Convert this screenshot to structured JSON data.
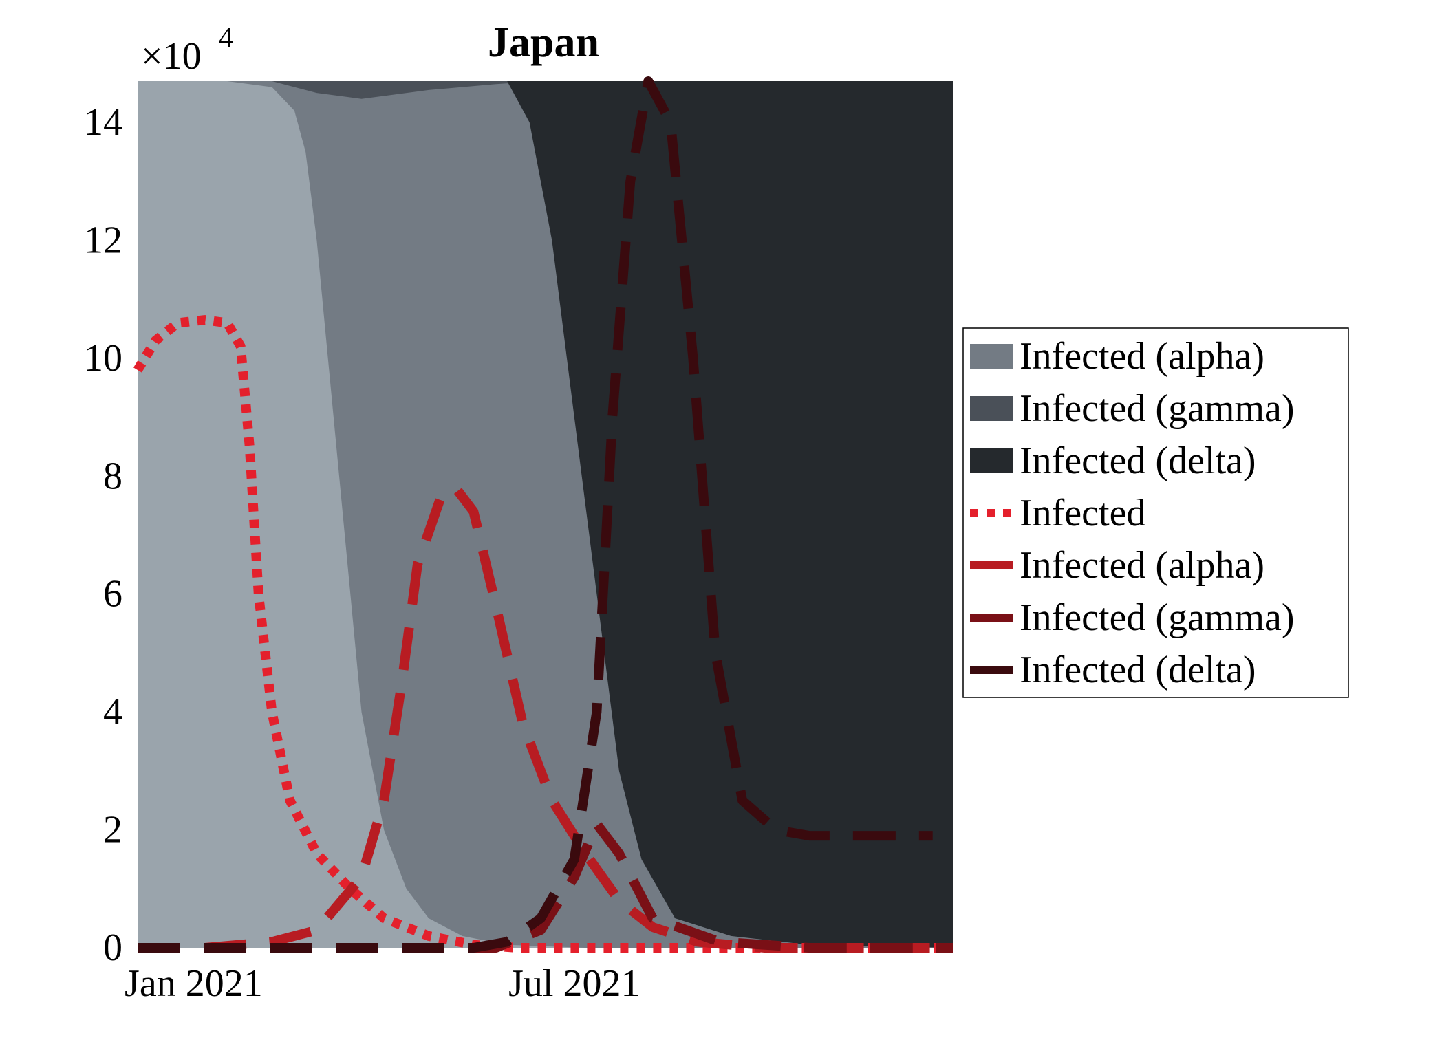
{
  "chart_data": {
    "type": "area",
    "title": "Japan",
    "y_exponent_label": "×10",
    "y_exponent_power": "4",
    "y_scale": 10000,
    "ylim": [
      0,
      14.7
    ],
    "xlim_days": [
      0,
      364
    ],
    "x_ticks": [
      {
        "day": 25,
        "label": "Jan 2021"
      },
      {
        "day": 195,
        "label": "Jul 2021"
      }
    ],
    "y_ticks": [
      {
        "value": 0,
        "label": "0"
      },
      {
        "value": 2,
        "label": "2"
      },
      {
        "value": 4,
        "label": "4"
      },
      {
        "value": 6,
        "label": "6"
      },
      {
        "value": 8,
        "label": "8"
      },
      {
        "value": 10,
        "label": "10"
      },
      {
        "value": 12,
        "label": "12"
      },
      {
        "value": 14,
        "label": "14"
      }
    ],
    "stacked_areas": [
      {
        "name": "Infected (alpha)",
        "color": "#9aa4ac",
        "upper": [
          [
            0,
            14.7
          ],
          [
            40,
            14.7
          ],
          [
            60,
            14.6
          ],
          [
            70,
            14.2
          ],
          [
            75,
            13.5
          ],
          [
            80,
            12.0
          ],
          [
            85,
            10.0
          ],
          [
            90,
            8.0
          ],
          [
            95,
            6.0
          ],
          [
            100,
            4.0
          ],
          [
            110,
            2.0
          ],
          [
            120,
            1.0
          ],
          [
            130,
            0.5
          ],
          [
            145,
            0.2
          ],
          [
            165,
            0.05
          ],
          [
            200,
            0.0
          ],
          [
            364,
            0.0
          ]
        ]
      },
      {
        "name": "Infected (gamma)",
        "color": "#737b84",
        "upper": [
          [
            0,
            14.7
          ],
          [
            364,
            14.7
          ]
        ]
      },
      {
        "name": "Infected (gamma)",
        "color": "#4a5058",
        "upper": [
          [
            0,
            14.7
          ],
          [
            364,
            14.7
          ]
        ]
      },
      {
        "name": "Infected (delta)",
        "color": "#25292d",
        "lower": [
          [
            0,
            14.7
          ],
          [
            165,
            14.7
          ],
          [
            175,
            14.0
          ],
          [
            185,
            12.0
          ],
          [
            195,
            9.0
          ],
          [
            205,
            6.0
          ],
          [
            215,
            3.0
          ],
          [
            225,
            1.5
          ],
          [
            240,
            0.5
          ],
          [
            265,
            0.2
          ],
          [
            300,
            0.05
          ],
          [
            364,
            0.0
          ]
        ]
      }
    ],
    "gamma_band": [
      [
        0,
        14.7
      ],
      [
        40,
        14.7
      ],
      [
        60,
        14.7
      ],
      [
        80,
        14.5
      ],
      [
        100,
        14.4
      ],
      [
        130,
        14.55
      ],
      [
        160,
        14.65
      ],
      [
        180,
        14.7
      ],
      [
        364,
        14.7
      ]
    ],
    "lines": [
      {
        "name": "Infected",
        "color": "#e4202c",
        "dash": "dotted",
        "points": [
          [
            0,
            9.8
          ],
          [
            8,
            10.3
          ],
          [
            18,
            10.6
          ],
          [
            30,
            10.65
          ],
          [
            40,
            10.6
          ],
          [
            46,
            10.2
          ],
          [
            50,
            8.5
          ],
          [
            54,
            6.0
          ],
          [
            60,
            4.0
          ],
          [
            68,
            2.5
          ],
          [
            80,
            1.6
          ],
          [
            95,
            1.0
          ],
          [
            110,
            0.5
          ],
          [
            130,
            0.2
          ],
          [
            150,
            0.05
          ],
          [
            170,
            0.0
          ],
          [
            364,
            0.0
          ]
        ]
      },
      {
        "name": "Infected (alpha)",
        "color": "#b81c22",
        "dash": "dashed",
        "points": [
          [
            0,
            0.0
          ],
          [
            30,
            0.0
          ],
          [
            60,
            0.1
          ],
          [
            80,
            0.3
          ],
          [
            100,
            1.2
          ],
          [
            110,
            2.5
          ],
          [
            118,
            4.5
          ],
          [
            125,
            6.5
          ],
          [
            135,
            7.6
          ],
          [
            142,
            7.8
          ],
          [
            150,
            7.4
          ],
          [
            160,
            5.8
          ],
          [
            172,
            3.8
          ],
          [
            185,
            2.5
          ],
          [
            200,
            1.6
          ],
          [
            215,
            0.8
          ],
          [
            230,
            0.35
          ],
          [
            250,
            0.1
          ],
          [
            280,
            0.0
          ],
          [
            364,
            0.0
          ]
        ]
      },
      {
        "name": "Infected (gamma)",
        "color": "#7a1016",
        "dash": "dashed",
        "points": [
          [
            0,
            0.0
          ],
          [
            160,
            0.0
          ],
          [
            180,
            0.3
          ],
          [
            195,
            1.2
          ],
          [
            205,
            2.1
          ],
          [
            215,
            1.6
          ],
          [
            230,
            0.5
          ],
          [
            260,
            0.1
          ],
          [
            300,
            0.0
          ],
          [
            364,
            0.0
          ]
        ]
      },
      {
        "name": "Infected (delta)",
        "color": "#3a0a0e",
        "dash": "dashed",
        "points": [
          [
            0,
            0.0
          ],
          [
            150,
            0.0
          ],
          [
            165,
            0.1
          ],
          [
            180,
            0.5
          ],
          [
            195,
            1.5
          ],
          [
            205,
            4.0
          ],
          [
            212,
            9.0
          ],
          [
            220,
            13.0
          ],
          [
            228,
            14.7
          ],
          [
            238,
            14.0
          ],
          [
            248,
            10.0
          ],
          [
            258,
            5.0
          ],
          [
            270,
            2.5
          ],
          [
            285,
            2.0
          ],
          [
            300,
            1.9
          ],
          [
            355,
            1.9
          ]
        ]
      }
    ],
    "legend": {
      "placement": "right",
      "entries": [
        {
          "label": "Infected (alpha)",
          "color": "#737b84",
          "kind": "patch"
        },
        {
          "label": "Infected (gamma)",
          "color": "#4a5058",
          "kind": "patch"
        },
        {
          "label": "Infected (delta)",
          "color": "#25292d",
          "kind": "patch"
        },
        {
          "label": "Infected",
          "color": "#e4202c",
          "kind": "dotted"
        },
        {
          "label": "Infected (alpha)",
          "color": "#b81c22",
          "kind": "line"
        },
        {
          "label": "Infected (gamma)",
          "color": "#7a1016",
          "kind": "line"
        },
        {
          "label": "Infected (delta)",
          "color": "#3a0a0e",
          "kind": "line"
        }
      ]
    }
  }
}
